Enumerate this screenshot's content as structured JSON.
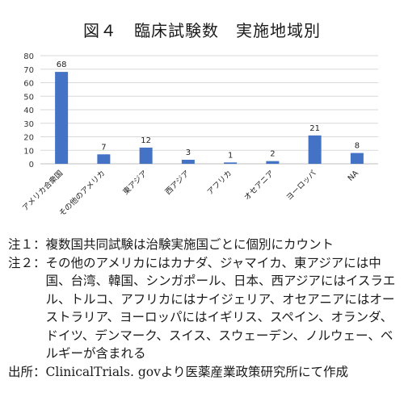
{
  "title": "図４　臨床試験数　実施地域別",
  "chart_data": {
    "type": "bar",
    "categories": [
      "アメリカ合衆国",
      "その他のアメリカ",
      "東アジア",
      "西アジア",
      "アフリカ",
      "オセアニア",
      "ヨーロッパ",
      "NA"
    ],
    "values": [
      68,
      7,
      12,
      3,
      1,
      2,
      21,
      8
    ],
    "ylim": [
      0,
      80
    ],
    "yticks": [
      0,
      10,
      20,
      30,
      40,
      50,
      60,
      70,
      80
    ],
    "grid": true,
    "data_labels": true,
    "bar_color": "#4472c4"
  },
  "notes": [
    {
      "tag": "注１：",
      "text": "複数国共同試験は治験実施国ごとに個別にカウント"
    },
    {
      "tag": "注２：",
      "text": "その他のアメリカにはカナダ、ジャマイカ、東アジアには中国、台湾、韓国、シンガポール、日本、西アジアにはイスラエル、トルコ、アフリカにはナイジェリア、オセアニアにはオーストラリア、ヨーロッパにはイギリス、スペイン、オランダ、ドイツ、デンマーク、スイス、スウェーデン、ノルウェー、ベルギーが含まれる"
    },
    {
      "tag": "出所：",
      "text": "ClinicalTrials. govより医薬産業政策研究所にて作成"
    }
  ]
}
